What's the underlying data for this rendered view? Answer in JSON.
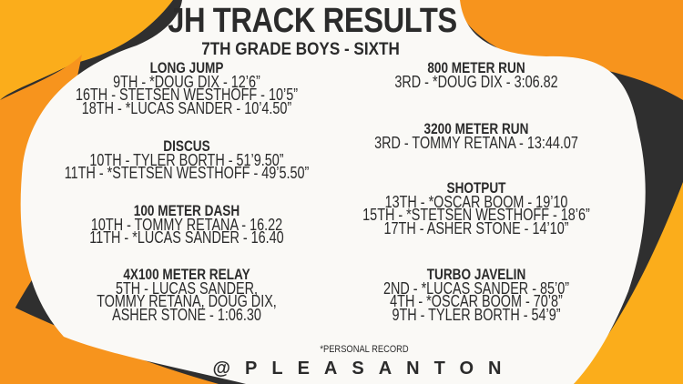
{
  "title": "JH TRACK RESULTS",
  "subtitle": "7TH GRADE BOYS - SIXTH",
  "colors": {
    "orange": "#f7941d",
    "light_orange": "#fbad1b",
    "dark": "#2f2f2f",
    "background": "#faf9f6"
  },
  "left_events": [
    {
      "name": "LONG JUMP",
      "results": [
        "9TH - *DOUG DIX - 12’6”",
        "16TH - STETSEN WESTHOFF - 10’5”",
        "18TH - *LUCAS SANDER - 10’4.50”"
      ]
    },
    {
      "name": "DISCUS",
      "results": [
        "10TH - TYLER BORTH - 51’9.50”",
        "11TH - *STETSEN WESTHOFF - 49’5.50”"
      ]
    },
    {
      "name": "100 METER DASH",
      "results": [
        "10TH - TOMMY RETANA - 16.22",
        "11TH - *LUCAS SANDER - 16.40"
      ]
    },
    {
      "name": "4X100 METER RELAY",
      "results": [
        "5TH - LUCAS SANDER,",
        "TOMMY RETANA, DOUG DIX,",
        "ASHER STONE - 1:06.30"
      ]
    }
  ],
  "right_events": [
    {
      "name": "800 METER RUN",
      "results": [
        "3RD - *DOUG DIX - 3:06.82"
      ]
    },
    {
      "name": "3200 METER RUN",
      "results": [
        "3RD - TOMMY RETANA - 13:44.07"
      ]
    },
    {
      "name": "SHOTPUT",
      "results": [
        "13TH - *OSCAR BOOM - 19’10",
        "15TH - *STETSEN WESTHOFF - 18’6”",
        "17TH - ASHER STONE - 14’10”"
      ]
    },
    {
      "name": "TURBO JAVELIN",
      "results": [
        "2ND - *LUCAS SANDER - 85’0”",
        "4TH - *OSCAR BOOM - 70’8”",
        "9TH - TYLER BORTH - 54’9”"
      ]
    }
  ],
  "footnote": "*PERSONAL RECORD",
  "handle": "@PLEASANTON"
}
